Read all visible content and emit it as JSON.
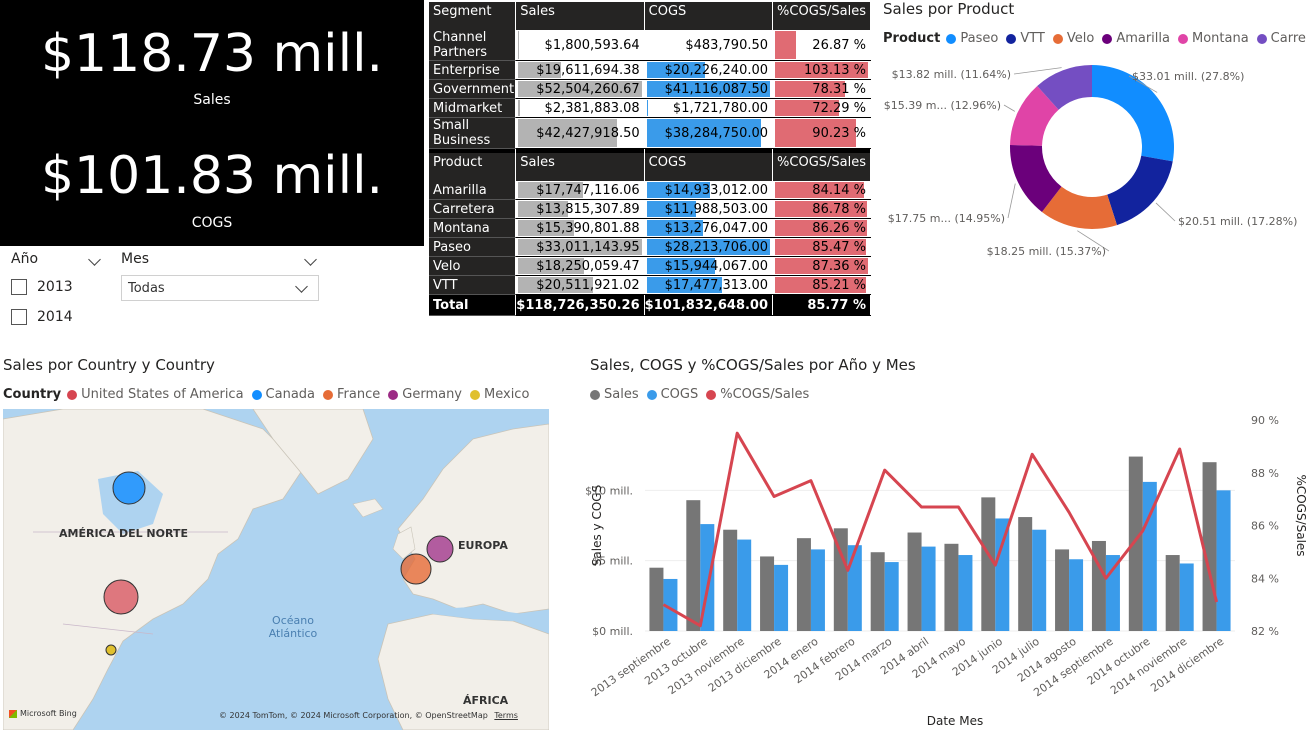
{
  "kpi": {
    "sales_value": "$118.73 mill.",
    "sales_label": "Sales",
    "cogs_value": "$101.83 mill.",
    "cogs_label": "COGS"
  },
  "slicer_year": {
    "title": "Año",
    "options": [
      {
        "label": "2013",
        "checked": false
      },
      {
        "label": "2014",
        "checked": false
      }
    ]
  },
  "slicer_month": {
    "title": "Mes",
    "selected": "Todas"
  },
  "segment_table": {
    "headers": [
      "Segment",
      "Sales",
      "COGS",
      "%COGS/Sales"
    ],
    "rows": [
      {
        "label": "Channel Partners",
        "sales": "$1,800,593.64",
        "cogs": "$483,790.50",
        "pct": "26.87 %",
        "sales_frac": 0.034,
        "cogs_frac": 0.012,
        "pct_frac": 0.26
      },
      {
        "label": "Enterprise",
        "sales": "$19,611,694.38",
        "cogs": "$20,226,240.00",
        "pct": "103.13 %",
        "sales_frac": 0.37,
        "cogs_frac": 0.49,
        "pct_frac": 1.0
      },
      {
        "label": "Government",
        "sales": "$52,504,260.67",
        "cogs": "$41,116,087.50",
        "pct": "78.31 %",
        "sales_frac": 1.0,
        "cogs_frac": 1.0,
        "pct_frac": 0.76
      },
      {
        "label": "Midmarket",
        "sales": "$2,381,883.08",
        "cogs": "$1,721,780.00",
        "pct": "72.29 %",
        "sales_frac": 0.045,
        "cogs_frac": 0.042,
        "pct_frac": 0.7
      },
      {
        "label": "Small Business",
        "sales": "$42,427,918.50",
        "cogs": "$38,284,750.00",
        "pct": "90.23 %",
        "sales_frac": 0.81,
        "cogs_frac": 0.93,
        "pct_frac": 0.875
      }
    ],
    "total": {
      "label": "Total",
      "sales": "$118,726,350.26",
      "cogs": "$101,832,648.00",
      "pct": "85.77 %"
    }
  },
  "product_table": {
    "headers": [
      "Product",
      "Sales",
      "COGS",
      "%COGS/Sales"
    ],
    "rows": [
      {
        "label": "Amarilla",
        "sales": "$17,747,116.06",
        "cogs": "$14,933,012.00",
        "pct": "84.14 %",
        "sales_frac": 0.54,
        "cogs_frac": 0.53,
        "pct_frac": 0.963
      },
      {
        "label": "Carretera",
        "sales": "$13,815,307.89",
        "cogs": "$11,988,503.00",
        "pct": "86.78 %",
        "sales_frac": 0.42,
        "cogs_frac": 0.42,
        "pct_frac": 0.993
      },
      {
        "label": "Montana",
        "sales": "$15,390,801.88",
        "cogs": "$13,276,047.00",
        "pct": "86.26 %",
        "sales_frac": 0.47,
        "cogs_frac": 0.47,
        "pct_frac": 0.987
      },
      {
        "label": "Paseo",
        "sales": "$33,011,143.95",
        "cogs": "$28,213,706.00",
        "pct": "85.47 %",
        "sales_frac": 1.0,
        "cogs_frac": 1.0,
        "pct_frac": 0.978
      },
      {
        "label": "Velo",
        "sales": "$18,250,059.47",
        "cogs": "$15,944,067.00",
        "pct": "87.36 %",
        "sales_frac": 0.55,
        "cogs_frac": 0.565,
        "pct_frac": 1.0
      },
      {
        "label": "VTT",
        "sales": "$20,511,921.02",
        "cogs": "$17,477,313.00",
        "pct": "85.21 %",
        "sales_frac": 0.62,
        "cogs_frac": 0.62,
        "pct_frac": 0.975
      }
    ],
    "total": {
      "label": "Total",
      "sales": "$118,726,350.26",
      "cogs": "$101,832,648.00",
      "pct": "85.77 %"
    }
  },
  "donut": {
    "title": "Sales por Product",
    "legend_title": "Product",
    "chart_data": {
      "type": "pie",
      "categories": [
        "Paseo",
        "VTT",
        "Velo",
        "Amarilla",
        "Montana",
        "Carretera"
      ],
      "values": [
        33.01,
        20.51,
        18.25,
        17.75,
        15.39,
        13.82
      ],
      "labels": [
        "$33.01 mill. (27.8%)",
        "$20.51 mill. (17.28%)",
        "$18.25 mill. (15.37%)",
        "$17.75 m... (14.95%)",
        "$15.39 m... (12.96%)",
        "$13.82 mill. (11.64%)"
      ],
      "colors": [
        "#118dff",
        "#12239e",
        "#e66c37",
        "#6b007b",
        "#e044a7",
        "#744ec2"
      ]
    }
  },
  "map": {
    "title": "Sales por Country y Country",
    "legend_title": "Country",
    "legend": [
      {
        "name": "United States of America",
        "color": "#d64550"
      },
      {
        "name": "Canada",
        "color": "#118dff"
      },
      {
        "name": "France",
        "color": "#e66c37"
      },
      {
        "name": "Germany",
        "color": "#9c2b85"
      },
      {
        "name": "Mexico",
        "color": "#e0c02e"
      }
    ],
    "labels": {
      "north_america": "AMÉRICA DEL NORTE",
      "europe": "EUROPA",
      "ocean": "Océano\nAtlántico",
      "africa": "ÁFRICA"
    },
    "bing": "Microsoft Bing",
    "attribution": "© 2024 TomTom, © 2024 Microsoft Corporation, © OpenStreetMap",
    "terms": "Terms"
  },
  "combo": {
    "title": "Sales, COGS y %COGS/Sales por Año y Mes",
    "chart_data": {
      "type": "bar",
      "categories": [
        "2013 septiembre",
        "2013 octubre",
        "2013 noviembre",
        "2013 diciembre",
        "2014 enero",
        "2014 febrero",
        "2014 marzo",
        "2014 abril",
        "2014 mayo",
        "2014 junio",
        "2014 julio",
        "2014 agosto",
        "2014 septiembre",
        "2014 octubre",
        "2014 noviembre",
        "2014 diciembre"
      ],
      "series": [
        {
          "name": "Sales",
          "color": "#767676",
          "values": [
            4.5,
            9.3,
            7.2,
            5.3,
            6.6,
            7.3,
            5.6,
            7.0,
            6.2,
            9.5,
            8.1,
            5.8,
            6.4,
            12.4,
            5.4,
            12.0
          ]
        },
        {
          "name": "COGS",
          "color": "#3a9bea",
          "values": [
            3.7,
            7.6,
            6.5,
            4.7,
            5.8,
            6.1,
            4.9,
            6.0,
            5.4,
            8.0,
            7.2,
            5.1,
            5.4,
            10.6,
            4.8,
            10.0
          ]
        },
        {
          "name": "%COGS/Sales",
          "color": "#d64550",
          "axis": "right",
          "values": [
            83.0,
            82.2,
            89.5,
            87.1,
            87.7,
            84.3,
            88.1,
            86.7,
            86.7,
            84.5,
            88.7,
            86.5,
            84.0,
            85.8,
            88.9,
            83.1
          ]
        }
      ],
      "ylabel": "Sales y COGS",
      "y2label": "%COGS/Sales",
      "xlabel": "Date Mes",
      "yticks": [
        "$0 mill.",
        "$5 mill.",
        "$10 mill."
      ],
      "y2ticks": [
        "82 %",
        "84 %",
        "86 %",
        "88 %",
        "90 %"
      ],
      "ylim": [
        0,
        15
      ],
      "y2lim": [
        82,
        90
      ]
    }
  }
}
